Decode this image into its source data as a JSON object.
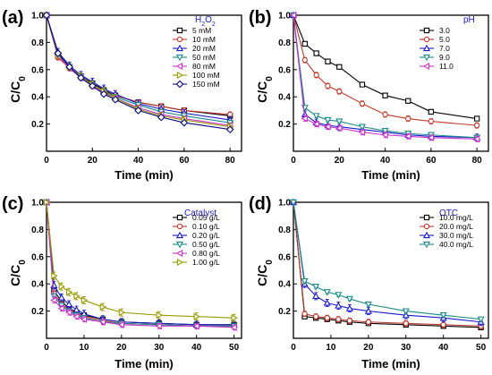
{
  "chart_data": [
    {
      "panel_label": "(a)",
      "type": "line",
      "title": "",
      "legend_title": "H2O2",
      "legend_title_main": "H",
      "legend_title_sub1": "2",
      "legend_title_mid": "O",
      "legend_title_sub2": "2",
      "xlabel": "Time (min)",
      "ylabel_main": "C/C",
      "ylabel_sub": "0",
      "xlim": [
        0,
        85
      ],
      "ylim": [
        0.0,
        1.0
      ],
      "xticks": [
        0,
        20,
        40,
        60,
        80
      ],
      "yticks": [
        0.0,
        0.2,
        0.4,
        0.6,
        0.8,
        1.0
      ],
      "ytick_labels": [
        "0.0",
        "0.2",
        "0.4",
        "0.6",
        "0.8",
        "1.0"
      ],
      "legend_position": "top-right",
      "x": [
        0,
        5,
        10,
        15,
        20,
        25,
        30,
        40,
        50,
        60,
        80
      ],
      "series": [
        {
          "name": "5 mM",
          "color": "#000000",
          "marker": "square",
          "values": [
            1.0,
            0.7,
            0.62,
            0.55,
            0.5,
            0.45,
            0.41,
            0.36,
            0.33,
            0.3,
            0.26
          ]
        },
        {
          "name": "10 mM",
          "color": "#c0392b",
          "marker": "circle",
          "values": [
            1.0,
            0.69,
            0.61,
            0.54,
            0.49,
            0.44,
            0.41,
            0.36,
            0.33,
            0.3,
            0.27
          ]
        },
        {
          "name": "20 mM",
          "color": "#1a1acc",
          "marker": "triangle-up",
          "values": [
            1.0,
            0.73,
            0.63,
            0.56,
            0.51,
            0.46,
            0.42,
            0.35,
            0.31,
            0.28,
            0.23
          ]
        },
        {
          "name": "50 mM",
          "color": "#1a8a8a",
          "marker": "triangle-down",
          "values": [
            1.0,
            0.71,
            0.62,
            0.55,
            0.49,
            0.44,
            0.4,
            0.34,
            0.29,
            0.26,
            0.21
          ]
        },
        {
          "name": "80 mM",
          "color": "#cc33cc",
          "marker": "triangle-left",
          "values": [
            1.0,
            0.7,
            0.61,
            0.54,
            0.48,
            0.43,
            0.39,
            0.32,
            0.27,
            0.24,
            0.19
          ]
        },
        {
          "name": "100 mM",
          "color": "#999900",
          "marker": "triangle-right",
          "values": [
            1.0,
            0.71,
            0.62,
            0.55,
            0.49,
            0.44,
            0.39,
            0.31,
            0.26,
            0.23,
            0.18
          ]
        },
        {
          "name": "150 mM",
          "color": "#0a0a80",
          "marker": "diamond",
          "values": [
            1.0,
            0.72,
            0.62,
            0.54,
            0.48,
            0.42,
            0.38,
            0.3,
            0.25,
            0.21,
            0.16
          ]
        }
      ]
    },
    {
      "panel_label": "(b)",
      "type": "line",
      "title": "",
      "legend_title": "pH",
      "xlabel": "Time (min)",
      "ylabel_main": "C/C",
      "ylabel_sub": "0",
      "xlim": [
        0,
        85
      ],
      "ylim": [
        0.0,
        1.0
      ],
      "xticks": [
        0,
        20,
        40,
        60,
        80
      ],
      "yticks": [
        0.0,
        0.2,
        0.4,
        0.6,
        0.8,
        1.0
      ],
      "ytick_labels": [
        "0.0",
        "0.2",
        "0.4",
        "0.6",
        "0.8",
        "1.0"
      ],
      "legend_position": "top-right",
      "x": [
        0,
        5,
        10,
        15,
        20,
        30,
        40,
        50,
        60,
        80
      ],
      "series": [
        {
          "name": "3.0",
          "color": "#000000",
          "marker": "square",
          "values": [
            1.0,
            0.79,
            0.72,
            0.66,
            0.62,
            0.49,
            0.41,
            0.37,
            0.29,
            0.24
          ]
        },
        {
          "name": "5.0",
          "color": "#c0392b",
          "marker": "circle",
          "values": [
            1.0,
            0.67,
            0.56,
            0.48,
            0.44,
            0.35,
            0.27,
            0.24,
            0.22,
            0.19
          ]
        },
        {
          "name": "7.0",
          "color": "#1a1acc",
          "marker": "triangle-up",
          "values": [
            1.0,
            0.27,
            0.21,
            0.19,
            0.18,
            0.16,
            0.14,
            0.12,
            0.11,
            0.1
          ]
        },
        {
          "name": "9.0",
          "color": "#1a8a8a",
          "marker": "triangle-down",
          "values": [
            1.0,
            0.32,
            0.26,
            0.23,
            0.22,
            0.18,
            0.15,
            0.13,
            0.12,
            0.1
          ]
        },
        {
          "name": "11.0",
          "color": "#cc33cc",
          "marker": "triangle-left",
          "values": [
            1.0,
            0.24,
            0.2,
            0.18,
            0.17,
            0.14,
            0.12,
            0.11,
            0.1,
            0.09
          ]
        }
      ]
    },
    {
      "panel_label": "(c)",
      "type": "line",
      "title": "",
      "legend_title": "Catalyst",
      "xlabel": "Time (min)",
      "ylabel_main": "C/C",
      "ylabel_sub": "0",
      "xlim": [
        0,
        52
      ],
      "ylim": [
        0.0,
        1.0
      ],
      "xticks": [
        0,
        10,
        20,
        30,
        40,
        50
      ],
      "yticks": [
        0.0,
        0.2,
        0.4,
        0.6,
        0.8,
        1.0
      ],
      "ytick_labels": [
        "0.0",
        "0.2",
        "0.4",
        "0.6",
        "0.8",
        "1.0"
      ],
      "legend_position": "top-right",
      "x": [
        0,
        2,
        4,
        6,
        8,
        10,
        15,
        20,
        30,
        40,
        50
      ],
      "series": [
        {
          "name": "0.05 g/L",
          "color": "#000000",
          "marker": "square",
          "values": [
            1.0,
            0.35,
            0.27,
            0.22,
            0.19,
            0.17,
            0.14,
            0.12,
            0.11,
            0.1,
            0.1
          ]
        },
        {
          "name": "0.10 g/L",
          "color": "#c0392b",
          "marker": "circle",
          "values": [
            1.0,
            0.33,
            0.25,
            0.21,
            0.18,
            0.16,
            0.13,
            0.11,
            0.1,
            0.09,
            0.09
          ]
        },
        {
          "name": "0.20 g/L",
          "color": "#1a1acc",
          "marker": "triangle-up",
          "values": [
            1.0,
            0.39,
            0.3,
            0.25,
            0.21,
            0.18,
            0.14,
            0.12,
            0.11,
            0.1,
            0.1
          ]
        },
        {
          "name": "0.50 g/L",
          "color": "#1a8a8a",
          "marker": "triangle-down",
          "values": [
            1.0,
            0.31,
            0.24,
            0.2,
            0.17,
            0.15,
            0.12,
            0.11,
            0.1,
            0.09,
            0.09
          ]
        },
        {
          "name": "0.80 g/L",
          "color": "#cc33cc",
          "marker": "triangle-left",
          "values": [
            1.0,
            0.28,
            0.22,
            0.19,
            0.16,
            0.14,
            0.12,
            0.1,
            0.09,
            0.09,
            0.08
          ]
        },
        {
          "name": "1.00 g/L",
          "color": "#999900",
          "marker": "triangle-right",
          "values": [
            1.0,
            0.46,
            0.38,
            0.34,
            0.31,
            0.28,
            0.23,
            0.19,
            0.17,
            0.16,
            0.15
          ]
        }
      ]
    },
    {
      "panel_label": "(d)",
      "type": "line",
      "title": "",
      "legend_title": "OTC",
      "xlabel": "Time (min)",
      "ylabel_main": "C/C",
      "ylabel_sub": "0",
      "xlim": [
        0,
        52
      ],
      "ylim": [
        0.0,
        1.0
      ],
      "xticks": [
        0,
        10,
        20,
        30,
        40,
        50
      ],
      "yticks": [
        0.0,
        0.2,
        0.4,
        0.6,
        0.8,
        1.0
      ],
      "ytick_labels": [
        "0.0",
        "0.2",
        "0.4",
        "0.6",
        "0.8",
        "1.0"
      ],
      "legend_position": "top-right",
      "x": [
        0,
        3,
        6,
        9,
        12,
        15,
        20,
        30,
        40,
        50
      ],
      "series": [
        {
          "name": "10.0 mg/L",
          "color": "#000000",
          "marker": "square",
          "values": [
            1.0,
            0.16,
            0.15,
            0.14,
            0.13,
            0.12,
            0.11,
            0.1,
            0.09,
            0.08
          ]
        },
        {
          "name": "20.0 mg/L",
          "color": "#c0392b",
          "marker": "circle",
          "values": [
            1.0,
            0.18,
            0.16,
            0.15,
            0.14,
            0.13,
            0.12,
            0.11,
            0.1,
            0.09
          ]
        },
        {
          "name": "30.0 mg/L",
          "color": "#1a1acc",
          "marker": "triangle-up",
          "values": [
            1.0,
            0.4,
            0.31,
            0.26,
            0.24,
            0.22,
            0.2,
            0.17,
            0.15,
            0.12
          ]
        },
        {
          "name": "40.0 mg/L",
          "color": "#1a8a8a",
          "marker": "triangle-down",
          "values": [
            1.0,
            0.42,
            0.38,
            0.34,
            0.32,
            0.29,
            0.25,
            0.2,
            0.17,
            0.14
          ]
        }
      ]
    }
  ]
}
